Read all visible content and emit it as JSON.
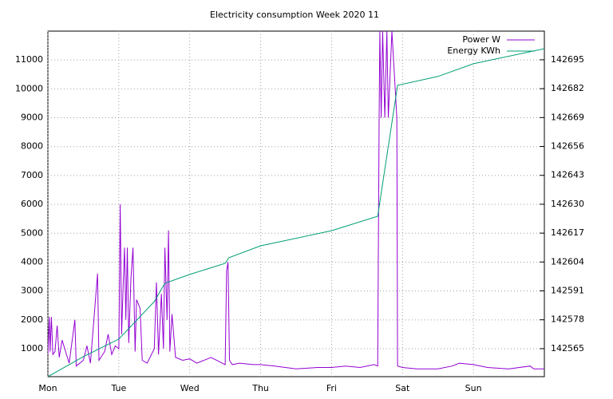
{
  "chart_data": {
    "type": "line",
    "title": "Electricity consumption Week 2020 11",
    "xlim": [
      0,
      7
    ],
    "xticks": [
      {
        "value": 0,
        "label": "Mon"
      },
      {
        "value": 1,
        "label": "Tue"
      },
      {
        "value": 2,
        "label": "Wed"
      },
      {
        "value": 3,
        "label": "Thu"
      },
      {
        "value": 4,
        "label": "Fri"
      },
      {
        "value": 5,
        "label": "Sat"
      },
      {
        "value": 6,
        "label": "Sun"
      }
    ],
    "ylim": [
      33,
      12000
    ],
    "yticks": [
      1000,
      2000,
      3000,
      4000,
      5000,
      6000,
      7000,
      8000,
      9000,
      10000,
      11000
    ],
    "y2lim": [
      142552.4,
      142707.9
    ],
    "y2ticks": [
      142565,
      142578,
      142591,
      142604,
      142617,
      142630,
      142643,
      142656,
      142669,
      142682,
      142695
    ],
    "grid": true,
    "legend": "top-right",
    "series": [
      {
        "name": "Power W",
        "color": "#9400d3",
        "x": [
          0,
          0.02,
          0.03,
          0.05,
          0.07,
          0.1,
          0.13,
          0.16,
          0.2,
          0.25,
          0.3,
          0.38,
          0.4,
          0.5,
          0.55,
          0.6,
          0.7,
          0.72,
          0.8,
          0.85,
          0.9,
          0.95,
          1.0,
          1.02,
          1.04,
          1.06,
          1.08,
          1.1,
          1.12,
          1.14,
          1.17,
          1.2,
          1.23,
          1.25,
          1.3,
          1.33,
          1.4,
          1.5,
          1.53,
          1.56,
          1.6,
          1.63,
          1.65,
          1.68,
          1.7,
          1.72,
          1.75,
          1.8,
          1.9,
          2.0,
          2.1,
          2.3,
          2.5,
          2.52,
          2.54,
          2.56,
          2.6,
          2.7,
          2.9,
          3.0,
          3.2,
          3.5,
          3.8,
          4.0,
          4.2,
          4.4,
          4.6,
          4.65,
          4.67,
          4.68,
          4.7,
          4.72,
          4.75,
          4.78,
          4.8,
          4.85,
          4.92,
          4.93,
          5.0,
          5.2,
          5.5,
          5.7,
          5.8,
          6.0,
          6.2,
          6.5,
          6.8,
          6.85,
          7.0
        ],
        "values": [
          800,
          2100,
          900,
          2100,
          800,
          900,
          1800,
          700,
          1300,
          900,
          500,
          2000,
          400,
          600,
          1100,
          500,
          3600,
          600,
          900,
          1500,
          800,
          1100,
          1000,
          6000,
          1500,
          3100,
          4500,
          2000,
          4500,
          1200,
          3400,
          4500,
          900,
          2700,
          2400,
          600,
          500,
          1000,
          3300,
          800,
          2900,
          1000,
          4500,
          2000,
          5100,
          900,
          2200,
          700,
          600,
          650,
          500,
          700,
          450,
          3700,
          4000,
          600,
          450,
          500,
          450,
          450,
          400,
          300,
          350,
          350,
          400,
          350,
          450,
          400,
          9000,
          12000,
          9000,
          12000,
          9000,
          12000,
          9000,
          12000,
          9000,
          400,
          350,
          300,
          300,
          400,
          500,
          450,
          350,
          300,
          400,
          300,
          300
        ]
      },
      {
        "name": "Energy KWh",
        "color": "#009e73",
        "axis": "y2",
        "x": [
          0,
          0.5,
          1.0,
          1.5,
          1.65,
          2.0,
          2.5,
          2.55,
          3.0,
          4.0,
          4.65,
          4.93,
          5.5,
          6.0,
          7.0
        ],
        "values": [
          142552.4,
          142561.4,
          142569.3,
          142586.2,
          142594.4,
          142598.4,
          142603.4,
          142605.9,
          142611.3,
          142618.1,
          142624.6,
          142683.5,
          142687.5,
          142693.2,
          142700
        ]
      }
    ]
  }
}
